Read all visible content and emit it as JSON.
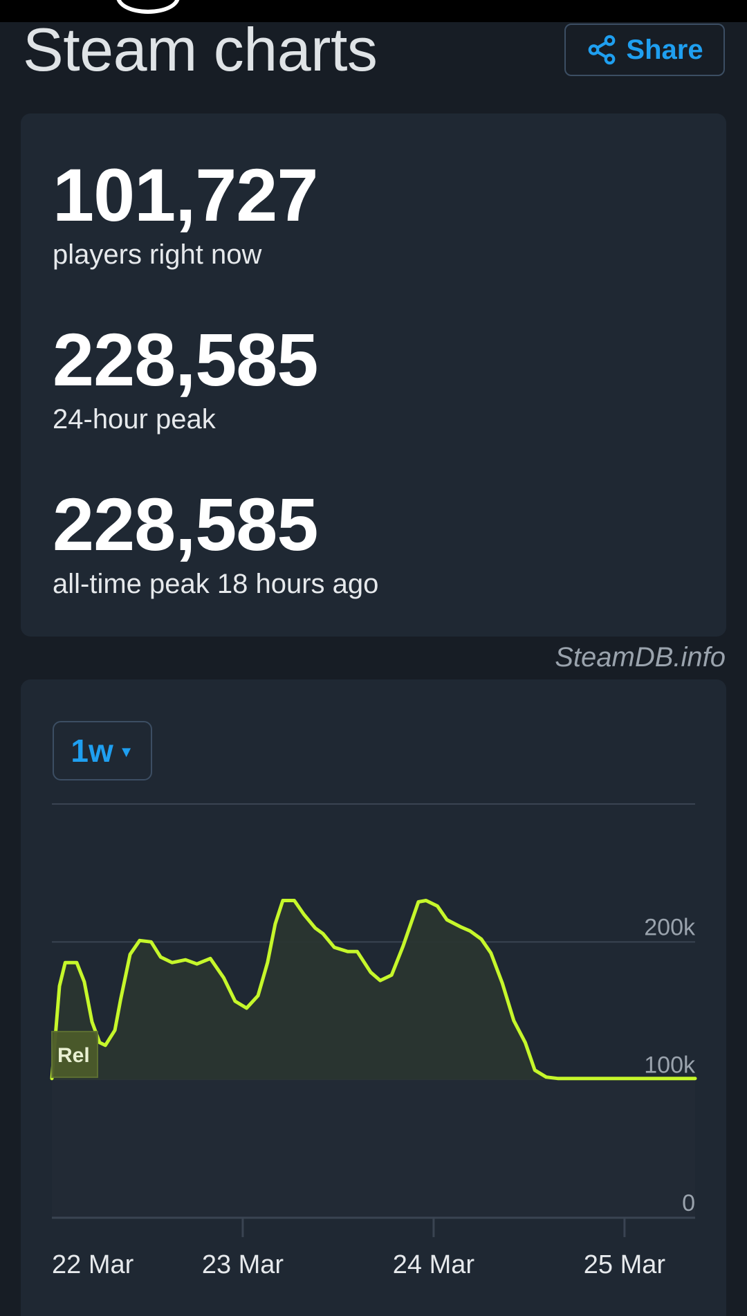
{
  "header": {
    "title": "Steam charts",
    "share_label": "Share"
  },
  "stats": {
    "current_players": "101,727",
    "current_label": "players right now",
    "peak_24h": "228,585",
    "peak_24h_label": "24-hour peak",
    "all_time_peak": "228,585",
    "all_time_label": "all-time peak 18 hours ago"
  },
  "watermark": "SteamDB.info",
  "chart_controls": {
    "range_label": "1w"
  },
  "colors": {
    "line": "#c6f72b",
    "accent": "#1f9ff0",
    "card": "#1f2833",
    "background": "#171d25"
  },
  "chart_data": {
    "type": "area",
    "ylim": [
      0,
      300000
    ],
    "y_ticks": [
      "0",
      "100k",
      "200k"
    ],
    "y_tick_values": [
      0,
      100000,
      200000
    ],
    "x_ticks": [
      "22 Mar",
      "23 Mar",
      "24 Mar",
      "25 Mar"
    ],
    "x_tick_values": [
      0,
      1,
      2,
      3
    ],
    "xlim": [
      0,
      3.37
    ],
    "grid": true,
    "release_marker": "Rel",
    "x": [
      0,
      0.04,
      0.07,
      0.13,
      0.17,
      0.21,
      0.25,
      0.28,
      0.33,
      0.36,
      0.41,
      0.46,
      0.52,
      0.57,
      0.63,
      0.7,
      0.76,
      0.83,
      0.9,
      0.96,
      1.02,
      1.08,
      1.13,
      1.17,
      1.21,
      1.27,
      1.32,
      1.38,
      1.42,
      1.48,
      1.55,
      1.6,
      1.67,
      1.72,
      1.78,
      1.84,
      1.92,
      1.96,
      2.02,
      2.07,
      2.14,
      2.19,
      2.25,
      2.3,
      2.36,
      2.42,
      2.48,
      2.53,
      2.59,
      2.65,
      2.7,
      2.78,
      2.84,
      2.9,
      2.96,
      3.01,
      3.07,
      3.13,
      3.19,
      3.23,
      3.27,
      3.32,
      3.37
    ],
    "values": [
      101000,
      168000,
      185000,
      185000,
      171000,
      142000,
      127000,
      125000,
      136000,
      158000,
      191000,
      201000,
      200000,
      189000,
      185000,
      187000,
      184000,
      188000,
      174000,
      157000,
      152000,
      161000,
      185000,
      213000,
      230000,
      230000,
      220000,
      210000,
      206000,
      196000,
      193000,
      193000,
      178000,
      172000,
      176000,
      197000,
      229000,
      230000,
      226000,
      216000,
      211000,
      208000,
      202000,
      192000,
      170000,
      143000,
      127000,
      107000,
      102000,
      101000,
      101000,
      101000,
      101000,
      101000,
      101000,
      101000,
      101000,
      101000,
      101000,
      101000,
      101000,
      101000,
      101000
    ]
  }
}
